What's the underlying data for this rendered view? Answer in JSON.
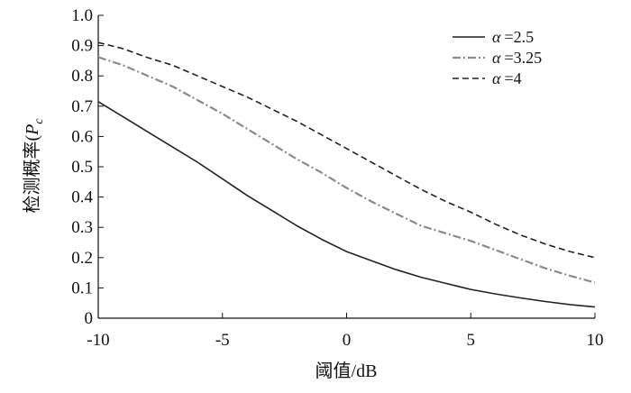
{
  "chart_data": {
    "type": "line",
    "title": "",
    "xlabel": "阈值/dB",
    "ylabel": "检测概率(Pc)",
    "ylabel_main": "检测概率(",
    "ylabel_sym": "P",
    "ylabel_sub": "c",
    "xlim": [
      -10,
      10
    ],
    "ylim": [
      0,
      1.0
    ],
    "xticks": [
      -10,
      -5,
      0,
      5,
      10
    ],
    "xtick_labels": [
      "-10",
      "-5",
      "0",
      "5",
      "10"
    ],
    "yticks": [
      0,
      0.1,
      0.2,
      0.3,
      0.4,
      0.5,
      0.6,
      0.7,
      0.8,
      0.9,
      1.0
    ],
    "ytick_labels": [
      "0",
      "0.1",
      "0.2",
      "0.3",
      "0.4",
      "0.5",
      "0.6",
      "0.7",
      "0.8",
      "0.9",
      "1.0"
    ],
    "grid": false,
    "legend_position": "top-right",
    "x": [
      -10,
      -9,
      -8,
      -7,
      -6,
      -5,
      -4,
      -3,
      -2,
      -1,
      0,
      1,
      2,
      3,
      4,
      5,
      6,
      7,
      8,
      9,
      10
    ],
    "series": [
      {
        "name": "α =2.5",
        "legend_symbol": "α",
        "legend_value": "=2.5",
        "style": "solid",
        "color": "#222222",
        "values": [
          0.715,
          0.665,
          0.615,
          0.565,
          0.515,
          0.46,
          0.405,
          0.355,
          0.305,
          0.26,
          0.22,
          0.19,
          0.16,
          0.135,
          0.115,
          0.095,
          0.08,
          0.067,
          0.055,
          0.045,
          0.037
        ]
      },
      {
        "name": "α =3.25",
        "legend_symbol": "α",
        "legend_value": "=3.25",
        "style": "dashdot",
        "color": "#8a8a8a",
        "values": [
          0.862,
          0.835,
          0.8,
          0.765,
          0.72,
          0.675,
          0.625,
          0.575,
          0.525,
          0.48,
          0.43,
          0.385,
          0.345,
          0.305,
          0.28,
          0.255,
          0.225,
          0.195,
          0.165,
          0.14,
          0.118
        ]
      },
      {
        "name": "α =4",
        "legend_symbol": "α",
        "legend_value": "=4",
        "style": "dashed",
        "color": "#222222",
        "values": [
          0.91,
          0.89,
          0.86,
          0.835,
          0.8,
          0.765,
          0.73,
          0.69,
          0.65,
          0.605,
          0.56,
          0.515,
          0.47,
          0.425,
          0.385,
          0.35,
          0.31,
          0.275,
          0.245,
          0.22,
          0.2
        ]
      }
    ]
  }
}
